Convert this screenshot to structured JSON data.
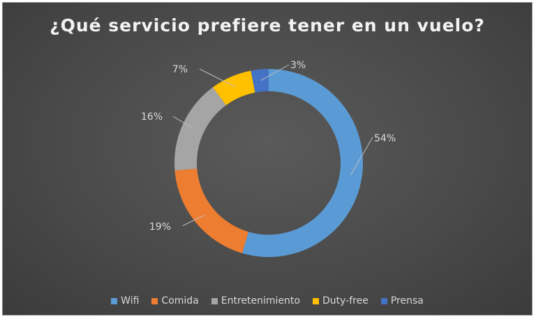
{
  "chart_data": {
    "type": "pie",
    "donut": true,
    "title": "¿Qué servicio prefiere tener en un vuelo?",
    "categories": [
      "Wifi",
      "Comida",
      "Entretenimiento",
      "Duty-free",
      "Prensa"
    ],
    "values": [
      54,
      19,
      16,
      7,
      3
    ],
    "labels": [
      "54%",
      "19%",
      "16%",
      "7%",
      "3%"
    ],
    "colors": [
      "#5b9bd5",
      "#ed7d31",
      "#a5a5a5",
      "#ffc000",
      "#4472c4"
    ],
    "legend_position": "bottom"
  }
}
